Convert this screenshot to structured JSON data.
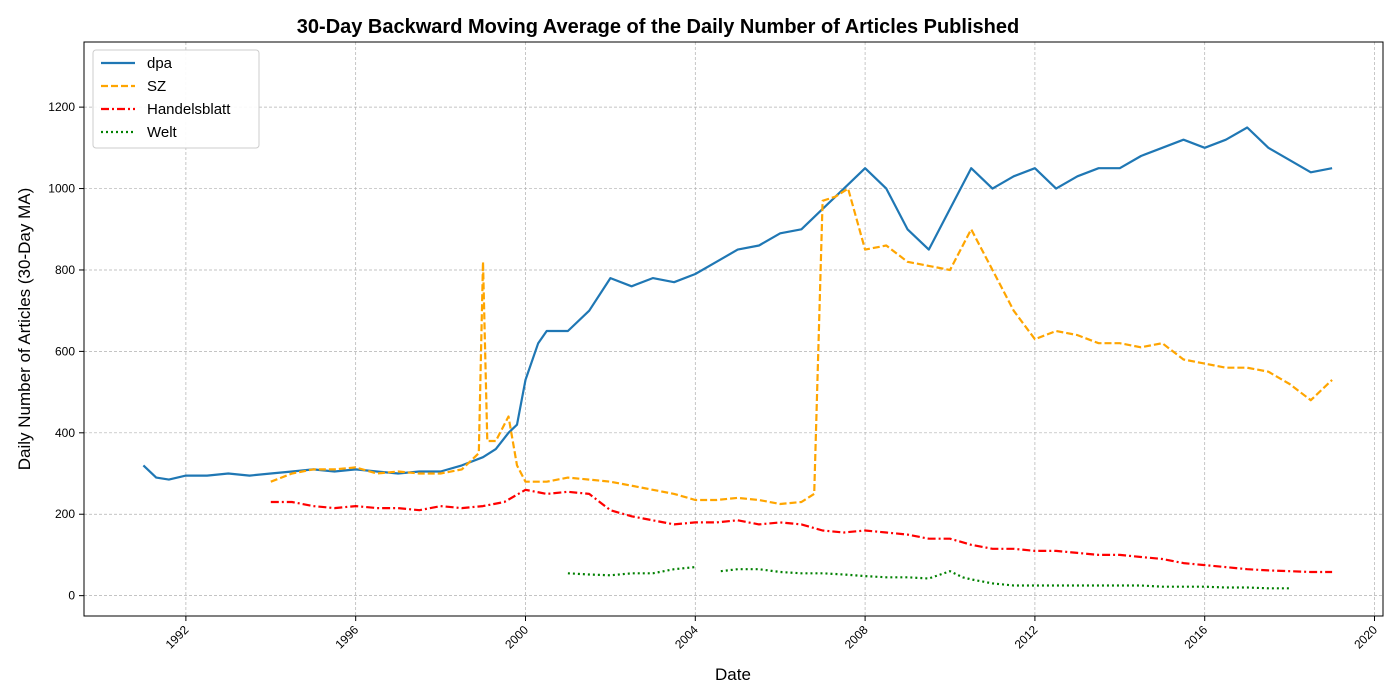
{
  "chart_data": {
    "type": "line",
    "title": "30-Day Backward Moving Average of the Daily Number of Articles Published",
    "xlabel": "Date",
    "ylabel": "Daily Number of Articles (30-Day MA)",
    "xlim": [
      1989.6,
      2020.2
    ],
    "ylim": [
      -50,
      1360
    ],
    "x_ticks": [
      1992,
      1996,
      2000,
      2004,
      2008,
      2012,
      2016,
      2020
    ],
    "y_ticks": [
      0,
      200,
      400,
      600,
      800,
      1000,
      1200
    ],
    "grid": true,
    "legend_position": "upper left",
    "series": [
      {
        "name": "dpa",
        "color": "#1f77b4",
        "style": "solid",
        "x": [
          1991.0,
          1991.3,
          1991.6,
          1992.0,
          1992.5,
          1993.0,
          1993.5,
          1994.0,
          1994.5,
          1995.0,
          1995.5,
          1996.0,
          1996.5,
          1997.0,
          1997.5,
          1998.0,
          1998.5,
          1999.0,
          1999.3,
          1999.6,
          1999.8,
          2000.0,
          2000.3,
          2000.5,
          2001.0,
          2001.5,
          2002.0,
          2002.5,
          2003.0,
          2003.5,
          2004.0,
          2004.5,
          2005.0,
          2005.5,
          2006.0,
          2006.5,
          2007.0,
          2007.5,
          2008.0,
          2008.5,
          2009.0,
          2009.5,
          2010.0,
          2010.5,
          2011.0,
          2011.5,
          2012.0,
          2012.5,
          2013.0,
          2013.5,
          2014.0,
          2014.5,
          2015.0,
          2015.5,
          2016.0,
          2016.5,
          2017.0,
          2017.5,
          2018.0,
          2018.5,
          2019.0
        ],
        "y": [
          320,
          290,
          285,
          295,
          295,
          300,
          295,
          300,
          305,
          310,
          305,
          310,
          305,
          300,
          305,
          305,
          320,
          340,
          360,
          400,
          420,
          530,
          620,
          650,
          650,
          700,
          780,
          760,
          780,
          770,
          790,
          820,
          850,
          860,
          890,
          900,
          950,
          1000,
          1050,
          1000,
          900,
          850,
          950,
          1050,
          1000,
          1030,
          1050,
          1000,
          1030,
          1050,
          1050,
          1080,
          1100,
          1120,
          1100,
          1120,
          1150,
          1100,
          1070,
          1040,
          1050
        ]
      },
      {
        "name": "SZ",
        "color": "#ffa500",
        "style": "dashed",
        "x": [
          1994.0,
          1994.5,
          1995.0,
          1995.5,
          1996.0,
          1996.5,
          1997.0,
          1997.5,
          1998.0,
          1998.5,
          1998.9,
          1999.0,
          1999.1,
          1999.3,
          1999.6,
          1999.8,
          2000.0,
          2000.5,
          2001.0,
          2001.5,
          2002.0,
          2002.5,
          2003.0,
          2003.5,
          2004.0,
          2004.5,
          2005.0,
          2005.5,
          2006.0,
          2006.5,
          2006.8,
          2007.0,
          2007.3,
          2007.6,
          2008.0,
          2008.5,
          2009.0,
          2009.5,
          2010.0,
          2010.5,
          2011.0,
          2011.5,
          2012.0,
          2012.5,
          2013.0,
          2013.5,
          2014.0,
          2014.5,
          2015.0,
          2015.5,
          2016.0,
          2016.5,
          2017.0,
          2017.5,
          2018.0,
          2018.5,
          2019.0
        ],
        "y": [
          280,
          300,
          310,
          310,
          315,
          300,
          305,
          300,
          300,
          310,
          350,
          820,
          380,
          380,
          440,
          320,
          280,
          280,
          290,
          285,
          280,
          270,
          260,
          250,
          235,
          235,
          240,
          235,
          225,
          230,
          250,
          970,
          980,
          1000,
          850,
          860,
          820,
          810,
          800,
          900,
          800,
          700,
          630,
          650,
          640,
          620,
          620,
          610,
          620,
          580,
          570,
          560,
          560,
          550,
          520,
          480,
          530
        ]
      },
      {
        "name": "Handelsblatt",
        "color": "#ff0000",
        "style": "dashdot",
        "x": [
          1994.0,
          1994.5,
          1995.0,
          1995.5,
          1996.0,
          1996.5,
          1997.0,
          1997.5,
          1998.0,
          1998.5,
          1999.0,
          1999.5,
          2000.0,
          2000.5,
          2001.0,
          2001.5,
          2002.0,
          2002.5,
          2003.0,
          2003.5,
          2004.0,
          2004.5,
          2005.0,
          2005.5,
          2006.0,
          2006.5,
          2007.0,
          2007.5,
          2008.0,
          2008.5,
          2009.0,
          2009.5,
          2010.0,
          2010.5,
          2011.0,
          2011.5,
          2012.0,
          2012.5,
          2013.0,
          2013.5,
          2014.0,
          2014.5,
          2015.0,
          2015.5,
          2016.0,
          2016.5,
          2017.0,
          2017.5,
          2018.0,
          2018.5,
          2019.0
        ],
        "y": [
          230,
          230,
          220,
          215,
          220,
          215,
          215,
          210,
          220,
          215,
          220,
          230,
          260,
          250,
          255,
          250,
          210,
          195,
          185,
          175,
          180,
          180,
          185,
          175,
          180,
          175,
          160,
          155,
          160,
          155,
          150,
          140,
          140,
          125,
          115,
          115,
          110,
          110,
          105,
          100,
          100,
          95,
          90,
          80,
          75,
          70,
          65,
          62,
          60,
          58,
          58
        ]
      },
      {
        "name": "Welt",
        "color": "#008000",
        "style": "dotted",
        "x": [
          2001.0,
          2001.5,
          2002.0,
          2002.5,
          2003.0,
          2003.5,
          2004.0,
          2004.5,
          2004.6,
          2005.0,
          2005.5,
          2006.0,
          2006.5,
          2007.0,
          2007.5,
          2008.0,
          2008.5,
          2009.0,
          2009.5,
          2010.0,
          2010.3,
          2010.5,
          2011.0,
          2011.5,
          2012.0,
          2012.5,
          2013.0,
          2013.5,
          2014.0,
          2014.5,
          2015.0,
          2015.5,
          2016.0,
          2016.5,
          2017.0,
          2017.5,
          2018.0
        ],
        "y": [
          55,
          52,
          50,
          55,
          55,
          65,
          70,
          null,
          60,
          65,
          65,
          58,
          55,
          55,
          52,
          48,
          45,
          45,
          42,
          60,
          45,
          40,
          30,
          25,
          25,
          25,
          25,
          25,
          25,
          25,
          22,
          22,
          22,
          20,
          20,
          18,
          18
        ]
      }
    ]
  }
}
